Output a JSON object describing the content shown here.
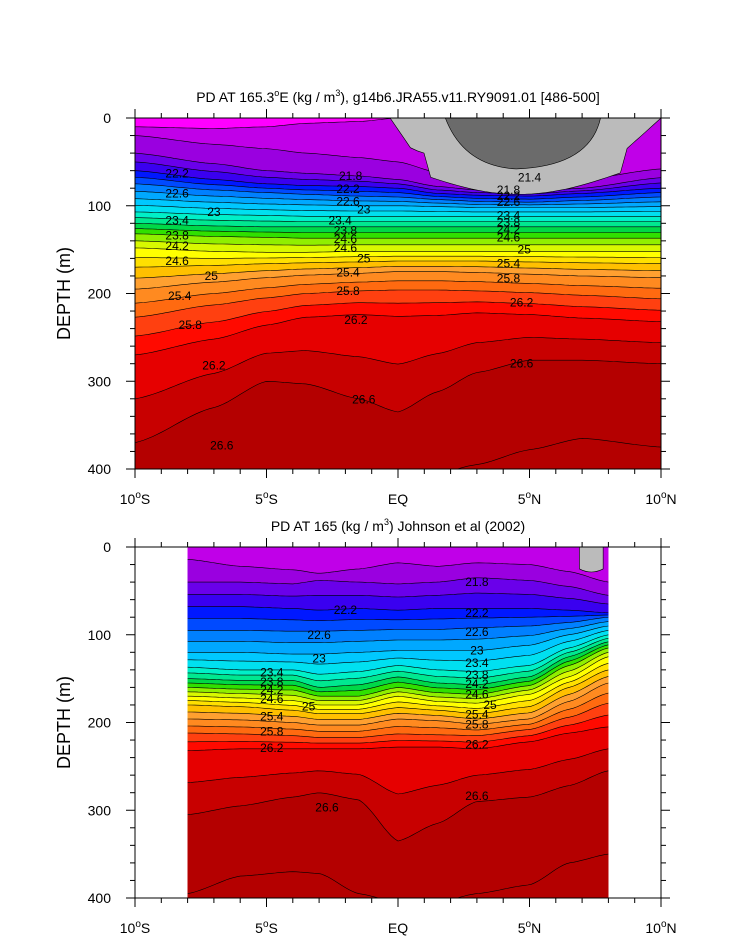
{
  "chart_data": [
    {
      "type": "heatmap",
      "title": "PD AT 165.3°E (kg / m³), g14b6.JRA55.v11.RY9091.01 [486-500]",
      "title_parts": [
        "PD AT 165.3",
        "o",
        "E (kg / m",
        "3",
        "), g14b6.JRA55.v11.RY9091.01 [486-500]"
      ],
      "ylabel": "DEPTH (m)",
      "xlim": [
        -10,
        10
      ],
      "ylim": [
        0,
        400
      ],
      "y_reversed": true,
      "x_ticks": [
        {
          "value": -10,
          "num": "10",
          "sup": "o",
          "hem": "S"
        },
        {
          "value": -5,
          "num": "5",
          "sup": "o",
          "hem": "S"
        },
        {
          "value": 0,
          "num": "EQ",
          "sup": "",
          "hem": ""
        },
        {
          "value": 5,
          "num": "5",
          "sup": "o",
          "hem": "N"
        },
        {
          "value": 10,
          "num": "10",
          "sup": "o",
          "hem": "N"
        }
      ],
      "y_ticks": [
        0,
        100,
        200,
        300,
        400
      ],
      "data_xrange": [
        -10,
        10
      ],
      "contour_levels": [
        21.4,
        21.6,
        21.8,
        22.0,
        22.2,
        22.4,
        22.6,
        22.8,
        23.0,
        23.2,
        23.4,
        23.6,
        23.8,
        24.0,
        24.2,
        24.4,
        24.6,
        24.8,
        25.0,
        25.2,
        25.4,
        25.6,
        25.8,
        26.0,
        26.2,
        26.4,
        26.6,
        26.8
      ],
      "profile": {
        "x": [
          -10,
          -7,
          -5,
          -3.5,
          -1.5,
          0,
          1.5,
          3,
          5,
          7,
          10
        ],
        "isopycnals": [
          {
            "level": 21.4,
            "depth": [
              10,
              12,
              10,
              6,
              4,
              0,
              0,
              0,
              0,
              0,
              0
            ]
          },
          {
            "level": 21.6,
            "depth": [
              20,
              30,
              35,
              40,
              45,
              50,
              62,
              68,
              72,
              70,
              58
            ]
          },
          {
            "level": 21.8,
            "depth": [
              40,
              52,
              60,
              63,
              66,
              70,
              78,
              82,
              84,
              80,
              68
            ]
          },
          {
            "level": 22.2,
            "depth": [
              60,
              70,
              75,
              77,
              78,
              80,
              86,
              88,
              89,
              86,
              80
            ]
          },
          {
            "level": 22.6,
            "depth": [
              75,
              82,
              85,
              87,
              89,
              90,
              93,
              95,
              96,
              94,
              90
            ]
          },
          {
            "level": 23.0,
            "depth": [
              92,
              96,
              98,
              99,
              100,
              100,
              101,
              102,
              102,
              102,
              101
            ]
          },
          {
            "level": 23.4,
            "depth": [
              107,
              110,
              111,
              112,
              112,
              112,
              112,
              112,
              112,
              112,
              112
            ]
          },
          {
            "level": 23.8,
            "depth": [
              120,
              123,
              124,
              124,
              124,
              124,
              124,
              124,
              124,
              124,
              124
            ]
          },
          {
            "level": 24.2,
            "depth": [
              132,
              135,
              136,
              137,
              137,
              137,
              137,
              137,
              137,
              137,
              137
            ]
          },
          {
            "level": 24.6,
            "depth": [
              148,
              152,
              153,
              153,
              152,
              152,
              152,
              152,
              152,
              152,
              152
            ]
          },
          {
            "level": 25.0,
            "depth": [
              170,
              168,
              166,
              165,
              164,
              163,
              163,
              163,
              164,
              165,
              166
            ]
          },
          {
            "level": 25.4,
            "depth": [
              195,
              187,
              182,
              179,
              177,
              175,
              175,
              176,
              178,
              180,
              182
            ]
          },
          {
            "level": 25.8,
            "depth": [
              227,
              213,
              205,
              200,
              197,
              196,
              196,
              197,
              199,
              202,
              206
            ]
          },
          {
            "level": 26.2,
            "depth": [
              270,
              252,
              236,
              227,
              224,
              226,
              225,
              222,
              224,
              228,
              232
            ]
          },
          {
            "level": 26.6,
            "depth": [
              370,
              330,
              300,
              303,
              320,
              335,
              312,
              290,
              276,
              276,
              280
            ]
          },
          {
            "level": 26.8,
            "depth": [
              405,
              405,
              405,
              405,
              405,
              405,
              405,
              395,
              378,
              365,
              375
            ]
          }
        ]
      },
      "labels": [
        {
          "text": "22.2",
          "x": -8.4,
          "y": 63
        },
        {
          "text": "22.6",
          "x": -8.4,
          "y": 86
        },
        {
          "text": "23",
          "x": -7.0,
          "y": 107
        },
        {
          "text": "23.4",
          "x": -8.4,
          "y": 117
        },
        {
          "text": "23.8",
          "x": -8.4,
          "y": 134
        },
        {
          "text": "24.2",
          "x": -8.4,
          "y": 146
        },
        {
          "text": "24.6",
          "x": -8.4,
          "y": 163
        },
        {
          "text": "25",
          "x": -7.1,
          "y": 180
        },
        {
          "text": "25.4",
          "x": -8.3,
          "y": 203
        },
        {
          "text": "25.8",
          "x": -7.9,
          "y": 236
        },
        {
          "text": "26.2",
          "x": -7.0,
          "y": 282
        },
        {
          "text": "26.6",
          "x": -6.7,
          "y": 373
        },
        {
          "text": "21.8",
          "x": -1.8,
          "y": 66
        },
        {
          "text": "22.2",
          "x": -1.9,
          "y": 81
        },
        {
          "text": "22.6",
          "x": -1.9,
          "y": 95
        },
        {
          "text": "23",
          "x": -1.3,
          "y": 104
        },
        {
          "text": "23.4",
          "x": -2.2,
          "y": 117
        },
        {
          "text": "23.8",
          "x": -2.0,
          "y": 128
        },
        {
          "text": "24.6",
          "x": -2.0,
          "y": 138
        },
        {
          "text": "24.6",
          "x": -2.0,
          "y": 148
        },
        {
          "text": "25",
          "x": -1.3,
          "y": 160
        },
        {
          "text": "25.4",
          "x": -1.9,
          "y": 176
        },
        {
          "text": "25.8",
          "x": -1.9,
          "y": 197
        },
        {
          "text": "26.2",
          "x": -1.6,
          "y": 230
        },
        {
          "text": "26.6",
          "x": -1.3,
          "y": 321
        },
        {
          "text": "21.4",
          "x": 5.0,
          "y": 68
        },
        {
          "text": "21.8",
          "x": 4.2,
          "y": 82
        },
        {
          "text": "22.2",
          "x": 4.2,
          "y": 89
        },
        {
          "text": "22.6",
          "x": 4.2,
          "y": 96
        },
        {
          "text": "23.4",
          "x": 4.2,
          "y": 111
        },
        {
          "text": "23.8",
          "x": 4.2,
          "y": 119
        },
        {
          "text": "24.2",
          "x": 4.2,
          "y": 127
        },
        {
          "text": "24.6",
          "x": 4.2,
          "y": 136
        },
        {
          "text": "25",
          "x": 4.8,
          "y": 150
        },
        {
          "text": "25.4",
          "x": 4.2,
          "y": 166
        },
        {
          "text": "25.8",
          "x": 4.2,
          "y": 183
        },
        {
          "text": "26.2",
          "x": 4.7,
          "y": 210
        },
        {
          "text": "26.6",
          "x": 4.7,
          "y": 280
        }
      ]
    },
    {
      "type": "heatmap",
      "title": "PD AT 165 (kg / m³) Johnson et al (2002)",
      "title_parts": [
        "PD AT 165 (kg / m",
        "3",
        ") Johnson et al (2002)"
      ],
      "ylabel": "DEPTH (m)",
      "xlim": [
        -10,
        10
      ],
      "ylim": [
        0,
        400
      ],
      "y_reversed": true,
      "x_ticks": [
        {
          "value": -10,
          "num": "10",
          "sup": "o",
          "hem": "S"
        },
        {
          "value": -5,
          "num": "5",
          "sup": "o",
          "hem": "S"
        },
        {
          "value": 0,
          "num": "EQ",
          "sup": "",
          "hem": ""
        },
        {
          "value": 5,
          "num": "5",
          "sup": "o",
          "hem": "N"
        },
        {
          "value": 10,
          "num": "10",
          "sup": "o",
          "hem": "N"
        }
      ],
      "y_ticks": [
        0,
        100,
        200,
        300,
        400
      ],
      "data_xrange": [
        -8,
        8
      ],
      "contour_levels": [
        21.4,
        21.6,
        21.8,
        22.0,
        22.2,
        22.4,
        22.6,
        22.8,
        23.0,
        23.2,
        23.4,
        23.6,
        23.8,
        24.0,
        24.2,
        24.4,
        24.6,
        24.8,
        25.0,
        25.2,
        25.4,
        25.6,
        25.8,
        26.0,
        26.2,
        26.4,
        26.6,
        26.8
      ],
      "profile": {
        "x": [
          -8,
          -6,
          -4,
          -3,
          -1.5,
          0,
          1.5,
          3,
          5,
          6.5,
          8
        ],
        "isopycnals": [
          {
            "level": 21.4,
            "depth": [
              0,
              0,
              0,
              0,
              0,
              0,
              0,
              0,
              0,
              0,
              0
            ]
          },
          {
            "level": 21.6,
            "depth": [
              14,
              22,
              26,
              30,
              25,
              18,
              22,
              18,
              20,
              28,
              40
            ]
          },
          {
            "level": 21.8,
            "depth": [
              40,
              40,
              42,
              38,
              40,
              42,
              40,
              35,
              38,
              45,
              55
            ]
          },
          {
            "level": 22.2,
            "depth": [
              68,
              68,
              70,
              72,
              70,
              72,
              70,
              70,
              70,
              72,
              75
            ]
          },
          {
            "level": 22.6,
            "depth": [
              95,
              95,
              96,
              96,
              95,
              94,
              94,
              92,
              90,
              86,
              80
            ]
          },
          {
            "level": 23.0,
            "depth": [
              120,
              120,
              122,
              122,
              120,
              118,
              118,
              118,
              112,
              100,
              90
            ]
          },
          {
            "level": 23.4,
            "depth": [
              137,
              140,
              140,
              145,
              142,
              135,
              140,
              142,
              135,
              115,
              100
            ]
          },
          {
            "level": 23.8,
            "depth": [
              150,
              152,
              152,
              160,
              157,
              148,
              155,
              157,
              148,
              125,
              108
            ]
          },
          {
            "level": 24.2,
            "depth": [
              160,
              162,
              163,
              170,
              170,
              160,
              166,
              168,
              158,
              135,
              115
            ]
          },
          {
            "level": 24.6,
            "depth": [
              170,
              172,
              175,
              180,
              180,
              170,
              176,
              178,
              168,
              148,
              125
            ]
          },
          {
            "level": 25.0,
            "depth": [
              180,
              182,
              186,
              190,
              190,
              183,
              186,
              190,
              182,
              160,
              140
            ]
          },
          {
            "level": 25.4,
            "depth": [
              196,
              197,
              200,
              203,
              203,
              196,
              198,
              202,
              196,
              176,
              155
            ]
          },
          {
            "level": 25.8,
            "depth": [
              212,
              213,
              215,
              217,
              217,
              213,
              214,
              215,
              208,
              194,
              178
            ]
          },
          {
            "level": 26.2,
            "depth": [
              232,
              230,
              230,
              230,
              230,
              228,
              228,
              230,
              222,
              212,
              205
            ]
          },
          {
            "level": 26.6,
            "depth": [
              305,
              295,
              285,
              280,
              288,
              335,
              315,
              290,
              285,
              272,
              255
            ]
          },
          {
            "level": 26.8,
            "depth": [
              395,
              375,
              370,
              372,
              395,
              405,
              405,
              395,
              385,
              360,
              350
            ]
          }
        ]
      },
      "labels": [
        {
          "text": "21.8",
          "x": 3.0,
          "y": 40
        },
        {
          "text": "22.2",
          "x": -2.0,
          "y": 72
        },
        {
          "text": "22.2",
          "x": 3.0,
          "y": 75
        },
        {
          "text": "22.6",
          "x": -3.0,
          "y": 100
        },
        {
          "text": "22.6",
          "x": 3.0,
          "y": 97
        },
        {
          "text": "23",
          "x": -3.0,
          "y": 127
        },
        {
          "text": "23",
          "x": 3.0,
          "y": 118
        },
        {
          "text": "23.4",
          "x": -4.8,
          "y": 143
        },
        {
          "text": "23.4",
          "x": 3.0,
          "y": 132
        },
        {
          "text": "23.8",
          "x": -4.8,
          "y": 154
        },
        {
          "text": "23.8",
          "x": 3.0,
          "y": 146
        },
        {
          "text": "24.2",
          "x": -4.8,
          "y": 163
        },
        {
          "text": "24.2",
          "x": 3.0,
          "y": 156
        },
        {
          "text": "24.6",
          "x": -4.8,
          "y": 173
        },
        {
          "text": "24.6",
          "x": 3.0,
          "y": 168
        },
        {
          "text": "25",
          "x": -3.4,
          "y": 182
        },
        {
          "text": "25",
          "x": 3.5,
          "y": 180
        },
        {
          "text": "25.4",
          "x": -4.8,
          "y": 193
        },
        {
          "text": "25.4",
          "x": 3.0,
          "y": 191
        },
        {
          "text": "25.8",
          "x": -4.8,
          "y": 210
        },
        {
          "text": "25.8",
          "x": 3.0,
          "y": 202
        },
        {
          "text": "26.2",
          "x": -4.8,
          "y": 229
        },
        {
          "text": "26.2",
          "x": 3.0,
          "y": 225
        },
        {
          "text": "26.6",
          "x": -2.7,
          "y": 297
        },
        {
          "text": "26.6",
          "x": 3.0,
          "y": 284
        }
      ],
      "gray_patch": {
        "x": [
          6.9,
          7.8
        ],
        "depth": [
          0,
          30
        ]
      }
    }
  ],
  "colors": {
    "bands": [
      "#ff00ff",
      "#e000f5",
      "#c000e8",
      "#9a00e0",
      "#6a00ea",
      "#3a00f0",
      "#0018ff",
      "#004aff",
      "#0080ff",
      "#00a8ff",
      "#00c8ff",
      "#00e0f0",
      "#00f0c8",
      "#00e890",
      "#00d848",
      "#30e000",
      "#90ef00",
      "#d8f800",
      "#ffff00",
      "#ffe000",
      "#ffc000",
      "#ffa030",
      "#ff8a20",
      "#ff6a10",
      "#ff4010",
      "#ff0a00",
      "#e60000",
      "#c80000",
      "#b40000"
    ],
    "gray_light": "#bbbbbb",
    "gray_dark": "#6b6b6b"
  }
}
